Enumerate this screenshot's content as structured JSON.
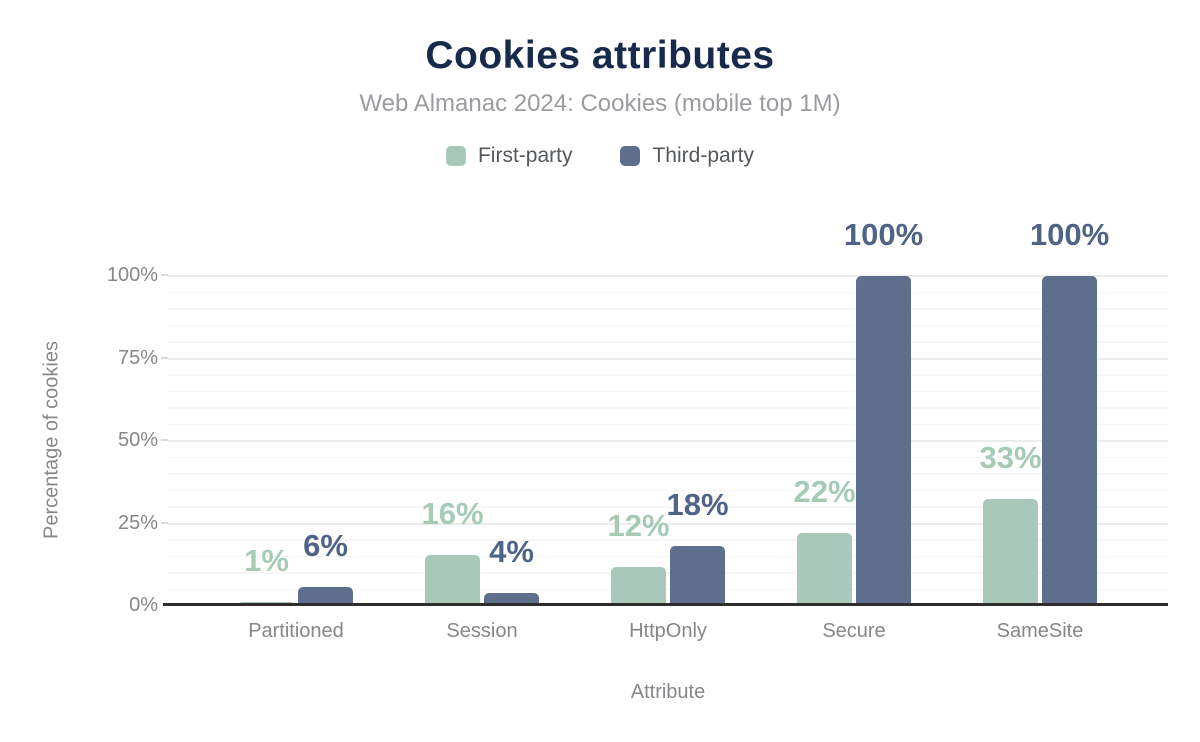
{
  "header": {
    "title": "Cookies attributes",
    "subtitle": "Web Almanac 2024: Cookies (mobile top 1M)",
    "title_color": "#172a4c",
    "subtitle_color": "#9a9ca0"
  },
  "legend": {
    "position": "top",
    "items": [
      {
        "label": "First-party",
        "color": "#a8c9ba"
      },
      {
        "label": "Third-party",
        "color": "#5d6f8c"
      }
    ]
  },
  "chart_data": {
    "type": "bar",
    "title": "Cookies attributes",
    "subtitle": "Web Almanac 2024: Cookies (mobile top 1M)",
    "xlabel": "Attribute",
    "ylabel": "Percentage of cookies",
    "categories": [
      "Partitioned",
      "Session",
      "HttpOnly",
      "Secure",
      "SameSite"
    ],
    "series": [
      {
        "name": "First-party",
        "color": "#a8c9ba",
        "label_color": "#a5cbb5",
        "values": [
          1,
          16,
          12,
          22,
          33
        ],
        "value_labels": [
          "1%",
          "16%",
          "12%",
          "22%",
          "33%"
        ],
        "bar_heights_pct": [
          0.8,
          15.3,
          11.5,
          21.8,
          32.1
        ]
      },
      {
        "name": "Third-party",
        "color": "#5d6f8c",
        "label_color": "#4e6385",
        "values": [
          6,
          4,
          18,
          100,
          100
        ],
        "value_labels": [
          "6%",
          "4%",
          "18%",
          "100%",
          "100%"
        ],
        "bar_heights_pct": [
          5.5,
          3.7,
          17.8,
          99.6,
          99.6
        ]
      }
    ],
    "ylim": [
      0,
      100
    ],
    "yticks": [
      {
        "label": "0%",
        "value": 0
      },
      {
        "label": "25%",
        "value": 25
      },
      {
        "label": "50%",
        "value": 50
      },
      {
        "label": "75%",
        "value": 75
      },
      {
        "label": "100%",
        "value": 100
      }
    ],
    "grid": "horizontal; minor every 5%, major every 25%",
    "legend_position": "top"
  }
}
